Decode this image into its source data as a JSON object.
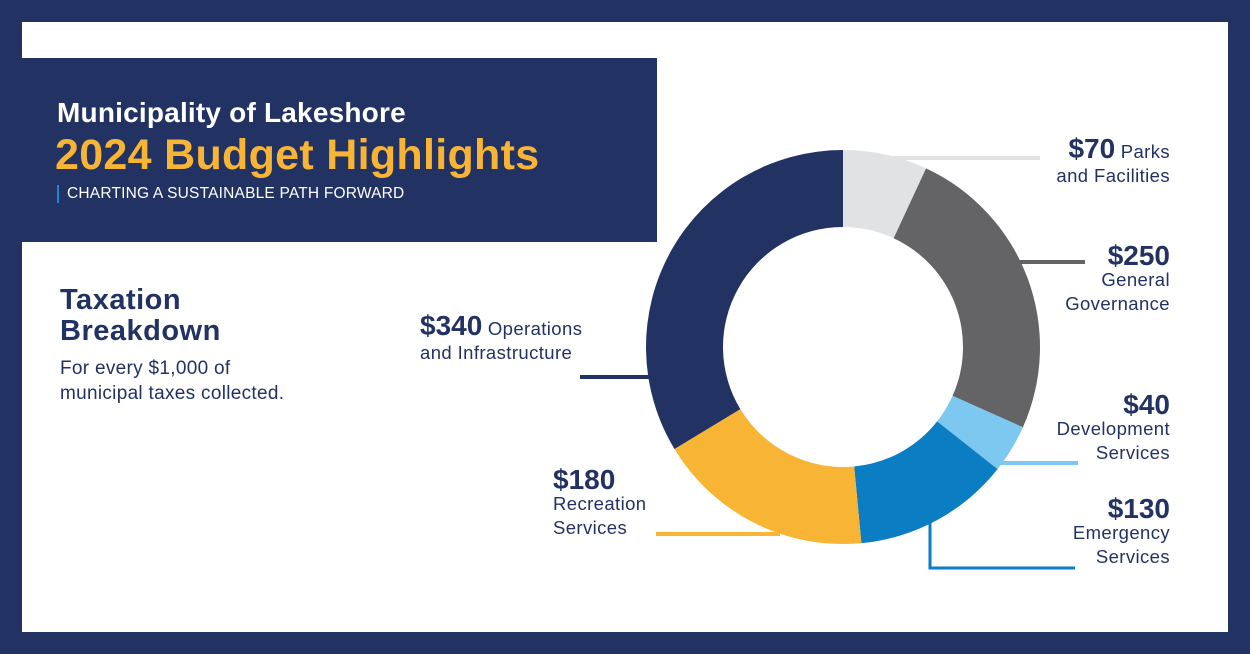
{
  "header": {
    "org_title": "Municipality of Lakeshore",
    "main_title": "2024 Budget Highlights",
    "tagline": "CHARTING A SUSTAINABLE PATH FORWARD"
  },
  "section": {
    "title_line1": "Taxation",
    "title_line2": "Breakdown",
    "subtitle_line1": "For every $1,000 of",
    "subtitle_line2": "municipal taxes collected."
  },
  "labels": {
    "parks": {
      "amount": "$70",
      "line1": "Parks",
      "line2": "and Facilities"
    },
    "governance": {
      "amount": "$250",
      "line1": "General",
      "line2": "Governance"
    },
    "development": {
      "amount": "$40",
      "line1": "Development",
      "line2": "Services"
    },
    "emergency": {
      "amount": "$130",
      "line1": "Emergency",
      "line2": "Services"
    },
    "recreation": {
      "amount": "$180",
      "line1": "Recreation",
      "line2": "Services"
    },
    "operations": {
      "amount": "$340",
      "line1": "Operations",
      "line2": "and Infrastructure"
    }
  },
  "colors": {
    "navy": "#223263",
    "gold": "#f8b434",
    "parks": "#e1e2e4",
    "governance": "#646466",
    "development": "#7cc8f0",
    "emergency": "#0b7dc3",
    "recreation": "#f8b434",
    "operations": "#223263"
  },
  "chart_data": {
    "type": "pie",
    "subtype": "donut",
    "title": "Taxation Breakdown",
    "subtitle": "For every $1,000 of municipal taxes collected.",
    "categories": [
      "Parks and Facilities",
      "General Governance",
      "Development Services",
      "Emergency Services",
      "Recreation Services",
      "Operations and Infrastructure"
    ],
    "values": [
      70,
      250,
      40,
      130,
      180,
      340
    ],
    "colors": [
      "#e1e2e4",
      "#646466",
      "#7cc8f0",
      "#0b7dc3",
      "#f8b434",
      "#223263"
    ],
    "units": "$",
    "start_angle": "12 o'clock, clockwise",
    "legend": "callout labels"
  }
}
